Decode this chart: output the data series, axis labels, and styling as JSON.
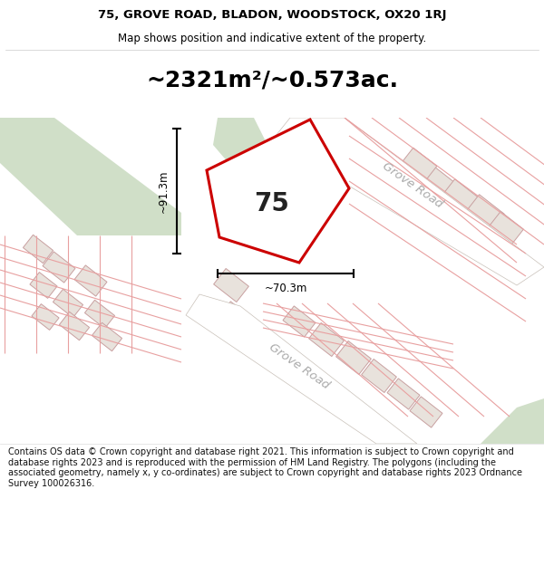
{
  "title_line1": "75, GROVE ROAD, BLADON, WOODSTOCK, OX20 1RJ",
  "title_line2": "Map shows position and indicative extent of the property.",
  "area_text": "~2321m²/~0.573ac.",
  "property_number": "75",
  "dim_vertical": "~91.3m",
  "dim_horizontal": "~70.3m",
  "road_label_upper": "Grove Road",
  "road_label_lower": "Grove Road",
  "footer_text": "Contains OS data © Crown copyright and database right 2021. This information is subject to Crown copyright and database rights 2023 and is reproduced with the permission of HM Land Registry. The polygons (including the associated geometry, namely x, y co-ordinates) are subject to Crown copyright and database rights 2023 Ordnance Survey 100026316.",
  "bg_color": "#f5f2ef",
  "white": "#ffffff",
  "property_fill": "#ffffff",
  "property_edge": "#cc0000",
  "green_fill": "#d0dfc8",
  "road_fill": "#ffffff",
  "road_edge": "#c8c0b8",
  "grid_color": "#e8a0a0",
  "building_fill": "#e8e2dc",
  "building_edge": "#c8a0a0",
  "dim_color": "#000000",
  "text_color": "#000000",
  "road_text_color": "#aaaaaa"
}
